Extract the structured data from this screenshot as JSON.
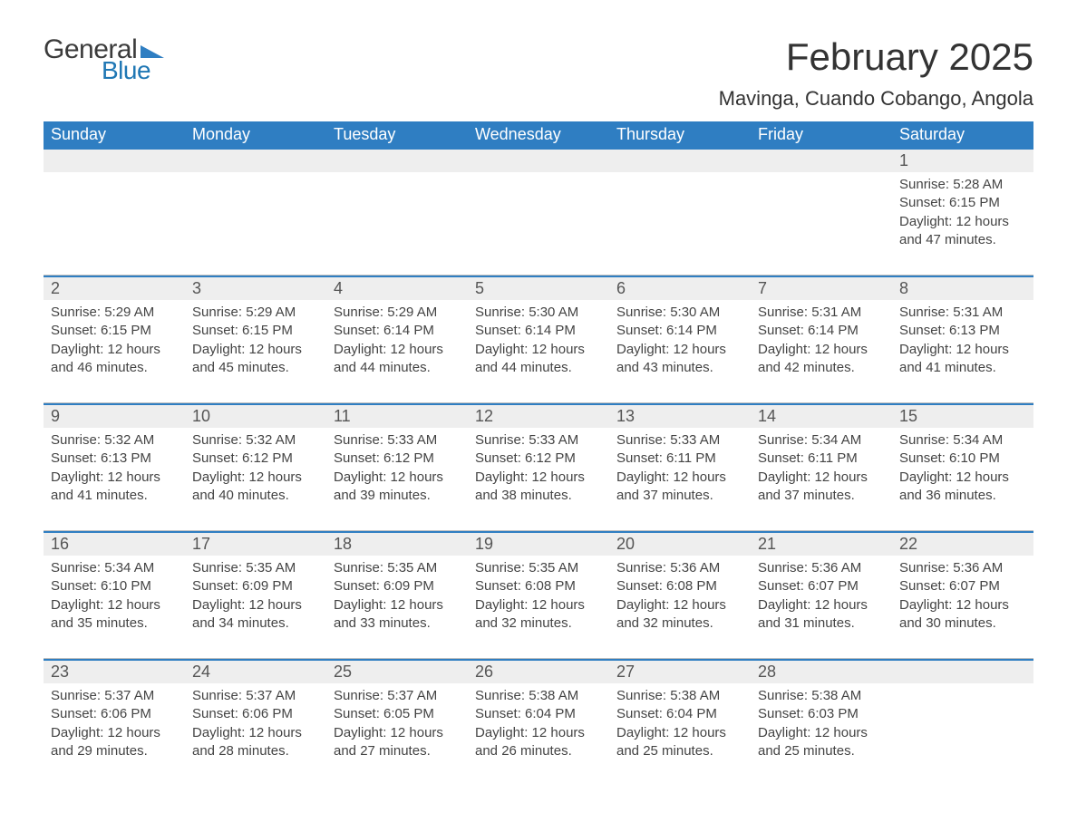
{
  "brand": {
    "word1": "General",
    "word2": "Blue",
    "triangle_color": "#2f7ec2"
  },
  "title": {
    "month_year": "February 2025",
    "location": "Mavinga, Cuando Cobango, Angola"
  },
  "colors": {
    "header_bg": "#2f7ec2",
    "header_text": "#ffffff",
    "daynum_bg": "#eeeeee",
    "rule_blue": "#2f7ec2",
    "rule_grey": "#bfbfbf",
    "text": "#3a3a3a",
    "bg": "#ffffff"
  },
  "weekdays": [
    "Sunday",
    "Monday",
    "Tuesday",
    "Wednesday",
    "Thursday",
    "Friday",
    "Saturday"
  ],
  "weeks": [
    {
      "days": [
        {
          "num": "",
          "lines": [
            "",
            "",
            "",
            ""
          ]
        },
        {
          "num": "",
          "lines": [
            "",
            "",
            "",
            ""
          ]
        },
        {
          "num": "",
          "lines": [
            "",
            "",
            "",
            ""
          ]
        },
        {
          "num": "",
          "lines": [
            "",
            "",
            "",
            ""
          ]
        },
        {
          "num": "",
          "lines": [
            "",
            "",
            "",
            ""
          ]
        },
        {
          "num": "",
          "lines": [
            "",
            "",
            "",
            ""
          ]
        },
        {
          "num": "1",
          "lines": [
            "Sunrise: 5:28 AM",
            "Sunset: 6:15 PM",
            "Daylight: 12 hours",
            "and 47 minutes."
          ]
        }
      ]
    },
    {
      "days": [
        {
          "num": "2",
          "lines": [
            "Sunrise: 5:29 AM",
            "Sunset: 6:15 PM",
            "Daylight: 12 hours",
            "and 46 minutes."
          ]
        },
        {
          "num": "3",
          "lines": [
            "Sunrise: 5:29 AM",
            "Sunset: 6:15 PM",
            "Daylight: 12 hours",
            "and 45 minutes."
          ]
        },
        {
          "num": "4",
          "lines": [
            "Sunrise: 5:29 AM",
            "Sunset: 6:14 PM",
            "Daylight: 12 hours",
            "and 44 minutes."
          ]
        },
        {
          "num": "5",
          "lines": [
            "Sunrise: 5:30 AM",
            "Sunset: 6:14 PM",
            "Daylight: 12 hours",
            "and 44 minutes."
          ]
        },
        {
          "num": "6",
          "lines": [
            "Sunrise: 5:30 AM",
            "Sunset: 6:14 PM",
            "Daylight: 12 hours",
            "and 43 minutes."
          ]
        },
        {
          "num": "7",
          "lines": [
            "Sunrise: 5:31 AM",
            "Sunset: 6:14 PM",
            "Daylight: 12 hours",
            "and 42 minutes."
          ]
        },
        {
          "num": "8",
          "lines": [
            "Sunrise: 5:31 AM",
            "Sunset: 6:13 PM",
            "Daylight: 12 hours",
            "and 41 minutes."
          ]
        }
      ]
    },
    {
      "days": [
        {
          "num": "9",
          "lines": [
            "Sunrise: 5:32 AM",
            "Sunset: 6:13 PM",
            "Daylight: 12 hours",
            "and 41 minutes."
          ]
        },
        {
          "num": "10",
          "lines": [
            "Sunrise: 5:32 AM",
            "Sunset: 6:12 PM",
            "Daylight: 12 hours",
            "and 40 minutes."
          ]
        },
        {
          "num": "11",
          "lines": [
            "Sunrise: 5:33 AM",
            "Sunset: 6:12 PM",
            "Daylight: 12 hours",
            "and 39 minutes."
          ]
        },
        {
          "num": "12",
          "lines": [
            "Sunrise: 5:33 AM",
            "Sunset: 6:12 PM",
            "Daylight: 12 hours",
            "and 38 minutes."
          ]
        },
        {
          "num": "13",
          "lines": [
            "Sunrise: 5:33 AM",
            "Sunset: 6:11 PM",
            "Daylight: 12 hours",
            "and 37 minutes."
          ]
        },
        {
          "num": "14",
          "lines": [
            "Sunrise: 5:34 AM",
            "Sunset: 6:11 PM",
            "Daylight: 12 hours",
            "and 37 minutes."
          ]
        },
        {
          "num": "15",
          "lines": [
            "Sunrise: 5:34 AM",
            "Sunset: 6:10 PM",
            "Daylight: 12 hours",
            "and 36 minutes."
          ]
        }
      ]
    },
    {
      "days": [
        {
          "num": "16",
          "lines": [
            "Sunrise: 5:34 AM",
            "Sunset: 6:10 PM",
            "Daylight: 12 hours",
            "and 35 minutes."
          ]
        },
        {
          "num": "17",
          "lines": [
            "Sunrise: 5:35 AM",
            "Sunset: 6:09 PM",
            "Daylight: 12 hours",
            "and 34 minutes."
          ]
        },
        {
          "num": "18",
          "lines": [
            "Sunrise: 5:35 AM",
            "Sunset: 6:09 PM",
            "Daylight: 12 hours",
            "and 33 minutes."
          ]
        },
        {
          "num": "19",
          "lines": [
            "Sunrise: 5:35 AM",
            "Sunset: 6:08 PM",
            "Daylight: 12 hours",
            "and 32 minutes."
          ]
        },
        {
          "num": "20",
          "lines": [
            "Sunrise: 5:36 AM",
            "Sunset: 6:08 PM",
            "Daylight: 12 hours",
            "and 32 minutes."
          ]
        },
        {
          "num": "21",
          "lines": [
            "Sunrise: 5:36 AM",
            "Sunset: 6:07 PM",
            "Daylight: 12 hours",
            "and 31 minutes."
          ]
        },
        {
          "num": "22",
          "lines": [
            "Sunrise: 5:36 AM",
            "Sunset: 6:07 PM",
            "Daylight: 12 hours",
            "and 30 minutes."
          ]
        }
      ]
    },
    {
      "days": [
        {
          "num": "23",
          "lines": [
            "Sunrise: 5:37 AM",
            "Sunset: 6:06 PM",
            "Daylight: 12 hours",
            "and 29 minutes."
          ]
        },
        {
          "num": "24",
          "lines": [
            "Sunrise: 5:37 AM",
            "Sunset: 6:06 PM",
            "Daylight: 12 hours",
            "and 28 minutes."
          ]
        },
        {
          "num": "25",
          "lines": [
            "Sunrise: 5:37 AM",
            "Sunset: 6:05 PM",
            "Daylight: 12 hours",
            "and 27 minutes."
          ]
        },
        {
          "num": "26",
          "lines": [
            "Sunrise: 5:38 AM",
            "Sunset: 6:04 PM",
            "Daylight: 12 hours",
            "and 26 minutes."
          ]
        },
        {
          "num": "27",
          "lines": [
            "Sunrise: 5:38 AM",
            "Sunset: 6:04 PM",
            "Daylight: 12 hours",
            "and 25 minutes."
          ]
        },
        {
          "num": "28",
          "lines": [
            "Sunrise: 5:38 AM",
            "Sunset: 6:03 PM",
            "Daylight: 12 hours",
            "and 25 minutes."
          ]
        },
        {
          "num": "",
          "lines": [
            "",
            "",
            "",
            ""
          ]
        }
      ]
    }
  ]
}
